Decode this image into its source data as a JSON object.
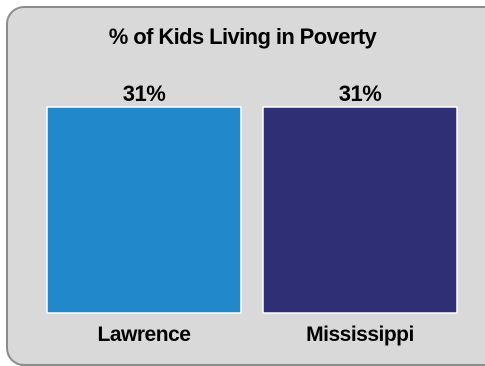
{
  "chart_data": {
    "type": "bar",
    "title": "% of Kids Living in Poverty",
    "categories": [
      "Lawrence",
      "Mississippi"
    ],
    "values": [
      31,
      31
    ],
    "value_labels": [
      "31%",
      "31%"
    ],
    "colors": [
      "#2288cc",
      "#2e2f74"
    ],
    "xlabel": "",
    "ylabel": "",
    "grid": false,
    "legend": "none"
  }
}
